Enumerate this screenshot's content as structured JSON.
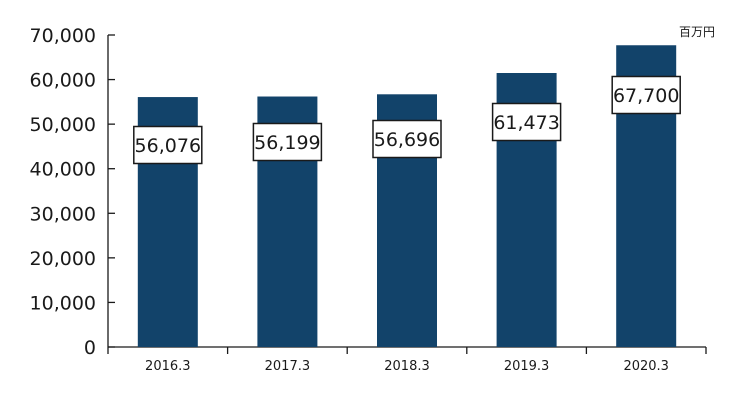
{
  "chart_data": {
    "type": "bar",
    "title": "",
    "xlabel": "",
    "ylabel": "",
    "unit_label": "百万円",
    "categories": [
      "2016.3",
      "2017.3",
      "2018.3",
      "2019.3",
      "2020.3"
    ],
    "values": [
      56076,
      56199,
      56696,
      61473,
      67700
    ],
    "data_labels": [
      "56,076",
      "56,199",
      "56,696",
      "61,473",
      "67,700"
    ],
    "ylim": [
      0,
      70000
    ],
    "yticks": [
      0,
      10000,
      20000,
      30000,
      40000,
      50000,
      60000,
      70000
    ],
    "ytick_labels": [
      "0",
      "10,000",
      "20,000",
      "30,000",
      "40,000",
      "50,000",
      "60,000",
      "70,000"
    ],
    "grid": false,
    "legend": "none",
    "bar_color": "#12436a"
  }
}
